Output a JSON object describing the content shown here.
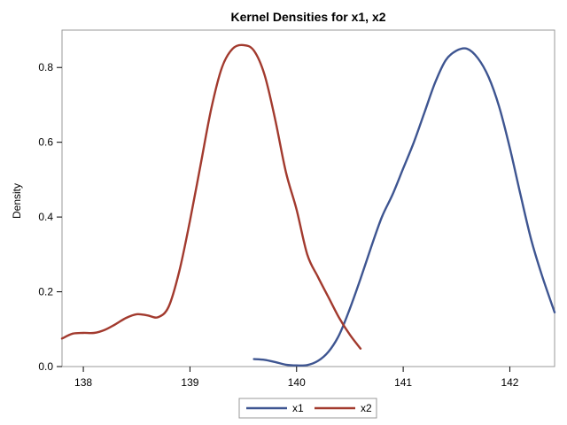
{
  "chart_data": {
    "type": "line",
    "title": "Kernel Densities for x1, x2",
    "xlabel": "",
    "ylabel": "Density",
    "xlim": [
      137.8,
      142.42
    ],
    "ylim": [
      0,
      0.9
    ],
    "xticks": [
      138,
      139,
      140,
      141,
      142
    ],
    "xtick_labels": [
      "138",
      "139",
      "140",
      "141",
      "142"
    ],
    "yticks": [
      0,
      0.2,
      0.4,
      0.6,
      0.8
    ],
    "ytick_labels": [
      "0.0",
      "0.2",
      "0.4",
      "0.6",
      "0.8"
    ],
    "grid": false,
    "legend_position": "bottom-center",
    "series": [
      {
        "name": "x1",
        "color": "#3e5591",
        "x": [
          139.6,
          139.7,
          139.8,
          139.9,
          140.0,
          140.1,
          140.2,
          140.3,
          140.4,
          140.5,
          140.6,
          140.7,
          140.8,
          140.9,
          141.0,
          141.1,
          141.2,
          141.3,
          141.4,
          141.5,
          141.6,
          141.7,
          141.8,
          141.9,
          142.0,
          142.1,
          142.2,
          142.3,
          142.42
        ],
        "y": [
          0.02,
          0.018,
          0.012,
          0.005,
          0.003,
          0.004,
          0.015,
          0.04,
          0.085,
          0.155,
          0.235,
          0.32,
          0.4,
          0.46,
          0.53,
          0.6,
          0.68,
          0.76,
          0.82,
          0.845,
          0.85,
          0.825,
          0.775,
          0.695,
          0.585,
          0.46,
          0.34,
          0.245,
          0.145
        ]
      },
      {
        "name": "x2",
        "color": "#a23a2e",
        "x": [
          137.8,
          137.9,
          138.0,
          138.1,
          138.2,
          138.3,
          138.4,
          138.5,
          138.6,
          138.7,
          138.8,
          138.9,
          139.0,
          139.1,
          139.2,
          139.3,
          139.4,
          139.5,
          139.6,
          139.7,
          139.8,
          139.9,
          140.0,
          140.1,
          140.2,
          140.3,
          140.4,
          140.5,
          140.6
        ],
        "y": [
          0.075,
          0.088,
          0.09,
          0.09,
          0.098,
          0.113,
          0.13,
          0.14,
          0.137,
          0.132,
          0.16,
          0.255,
          0.39,
          0.54,
          0.69,
          0.8,
          0.85,
          0.86,
          0.845,
          0.78,
          0.66,
          0.52,
          0.42,
          0.3,
          0.24,
          0.185,
          0.13,
          0.085,
          0.048
        ]
      }
    ]
  }
}
